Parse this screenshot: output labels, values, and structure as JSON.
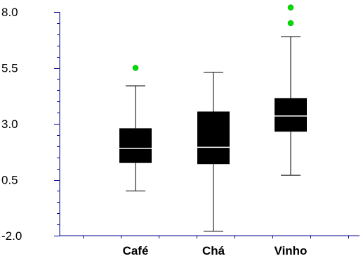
{
  "chart_data": {
    "type": "boxplot",
    "title": "",
    "xlabel": "",
    "ylabel": "",
    "ylim": [
      -2.0,
      8.0
    ],
    "y_ticks": [
      "8.0",
      "5.5",
      "3.0",
      "0.5",
      "-2.0"
    ],
    "categories": [
      "Café",
      "Chá",
      "Vinho"
    ],
    "boxes": [
      {
        "category": "Café",
        "whisker_low": 0.0,
        "q1": 1.25,
        "median": 1.9,
        "q3": 2.8,
        "whisker_high": 4.7,
        "outliers": [
          5.5
        ]
      },
      {
        "category": "Chá",
        "whisker_low": -1.8,
        "q1": 1.2,
        "median": 1.95,
        "q3": 3.55,
        "whisker_high": 5.3,
        "outliers": []
      },
      {
        "category": "Vinho",
        "whisker_low": 0.7,
        "q1": 2.65,
        "median": 3.35,
        "q3": 4.15,
        "whisker_high": 6.9,
        "outliers": [
          7.5,
          8.2
        ]
      }
    ],
    "colors": {
      "box": "#000000",
      "median": "#ffffff",
      "outlier": "#00dd00",
      "axis": "#00008b"
    },
    "grid": false,
    "legend": "none"
  }
}
